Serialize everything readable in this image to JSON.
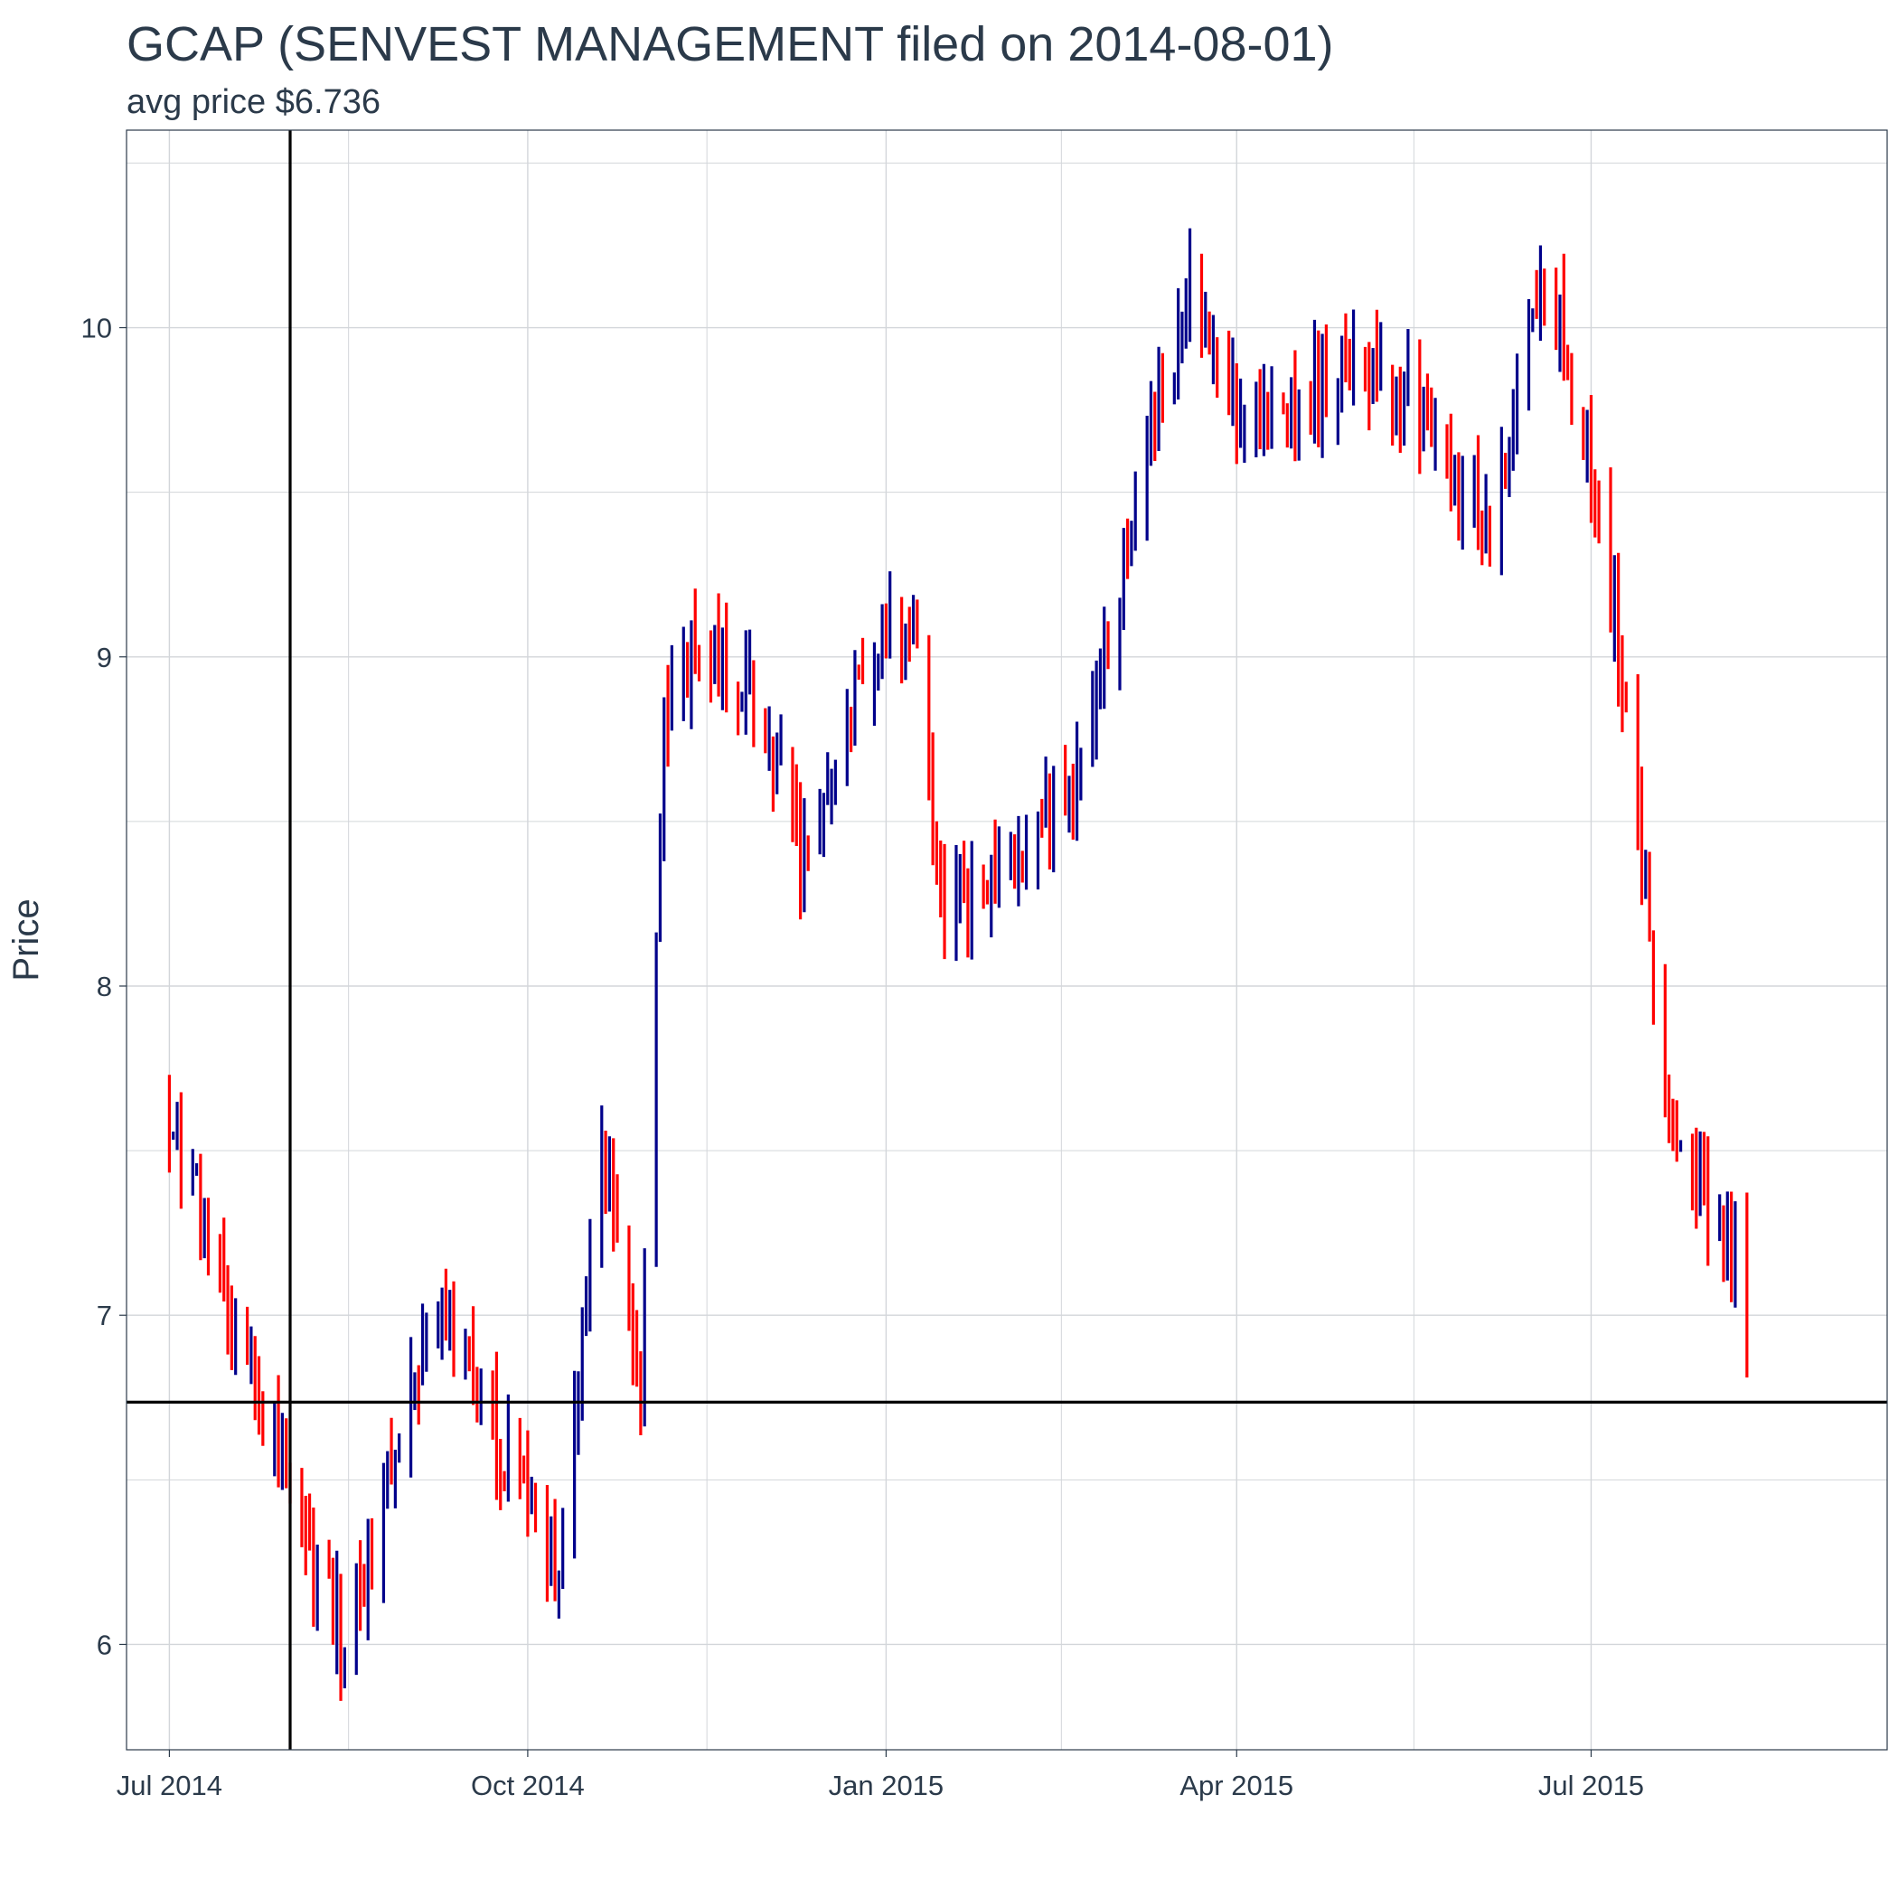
{
  "chart_data": {
    "type": "bar",
    "subtype": "ohlc-range",
    "title": "GCAP (SENVEST MANAGEMENT filed on 2014-08-01)",
    "subtitle": "avg price $6.736",
    "xlabel": "",
    "ylabel": "Price",
    "ylim": [
      5.68,
      10.6
    ],
    "xlim": [
      "2014-06-20",
      "2015-09-15"
    ],
    "x_ticks": [
      {
        "date": "2014-07-01",
        "label": "Jul 2014"
      },
      {
        "date": "2014-10-01",
        "label": "Oct 2014"
      },
      {
        "date": "2015-01-01",
        "label": "Jan 2015"
      },
      {
        "date": "2015-04-01",
        "label": "Apr 2015"
      },
      {
        "date": "2015-07-01",
        "label": "Jul 2015"
      }
    ],
    "y_ticks": [
      6,
      7,
      8,
      9,
      10
    ],
    "y_minor_ticks": [
      6.5,
      7.5,
      8.5,
      9.5,
      10.5
    ],
    "reference_lines": {
      "vertical": "2014-08-01",
      "horizontal": 6.736
    },
    "colors": {
      "up": "#00008b",
      "down": "#ff0000",
      "grid": "#d3d6da",
      "reference": "#000000"
    },
    "grid": true,
    "legend": "none",
    "key_points": [
      {
        "date": "2014-07-01",
        "price": 7.6
      },
      {
        "date": "2014-08-01",
        "price": 6.45
      },
      {
        "date": "2014-08-15",
        "price": 6.0
      },
      {
        "date": "2014-09-10",
        "price": 7.1
      },
      {
        "date": "2014-09-25",
        "price": 6.55
      },
      {
        "date": "2014-10-08",
        "price": 6.2
      },
      {
        "date": "2014-10-20",
        "price": 7.5
      },
      {
        "date": "2014-10-30",
        "price": 6.75
      },
      {
        "date": "2014-11-05",
        "price": 8.9
      },
      {
        "date": "2014-11-15",
        "price": 9.05
      },
      {
        "date": "2014-12-01",
        "price": 8.8
      },
      {
        "date": "2014-12-10",
        "price": 8.35
      },
      {
        "date": "2014-12-25",
        "price": 8.9
      },
      {
        "date": "2015-01-08",
        "price": 9.15
      },
      {
        "date": "2015-01-15",
        "price": 8.2
      },
      {
        "date": "2015-02-01",
        "price": 8.4
      },
      {
        "date": "2015-02-20",
        "price": 8.65
      },
      {
        "date": "2015-03-05",
        "price": 9.4
      },
      {
        "date": "2015-03-20",
        "price": 10.15
      },
      {
        "date": "2015-04-01",
        "price": 9.7
      },
      {
        "date": "2015-04-20",
        "price": 9.8
      },
      {
        "date": "2015-05-05",
        "price": 9.9
      },
      {
        "date": "2015-05-20",
        "price": 9.7
      },
      {
        "date": "2015-06-05",
        "price": 9.4
      },
      {
        "date": "2015-06-20",
        "price": 10.2
      },
      {
        "date": "2015-07-01",
        "price": 9.55
      },
      {
        "date": "2015-07-10",
        "price": 8.9
      },
      {
        "date": "2015-07-20",
        "price": 7.65
      },
      {
        "date": "2015-08-01",
        "price": 7.3
      },
      {
        "date": "2015-08-10",
        "price": 7.05
      }
    ]
  }
}
